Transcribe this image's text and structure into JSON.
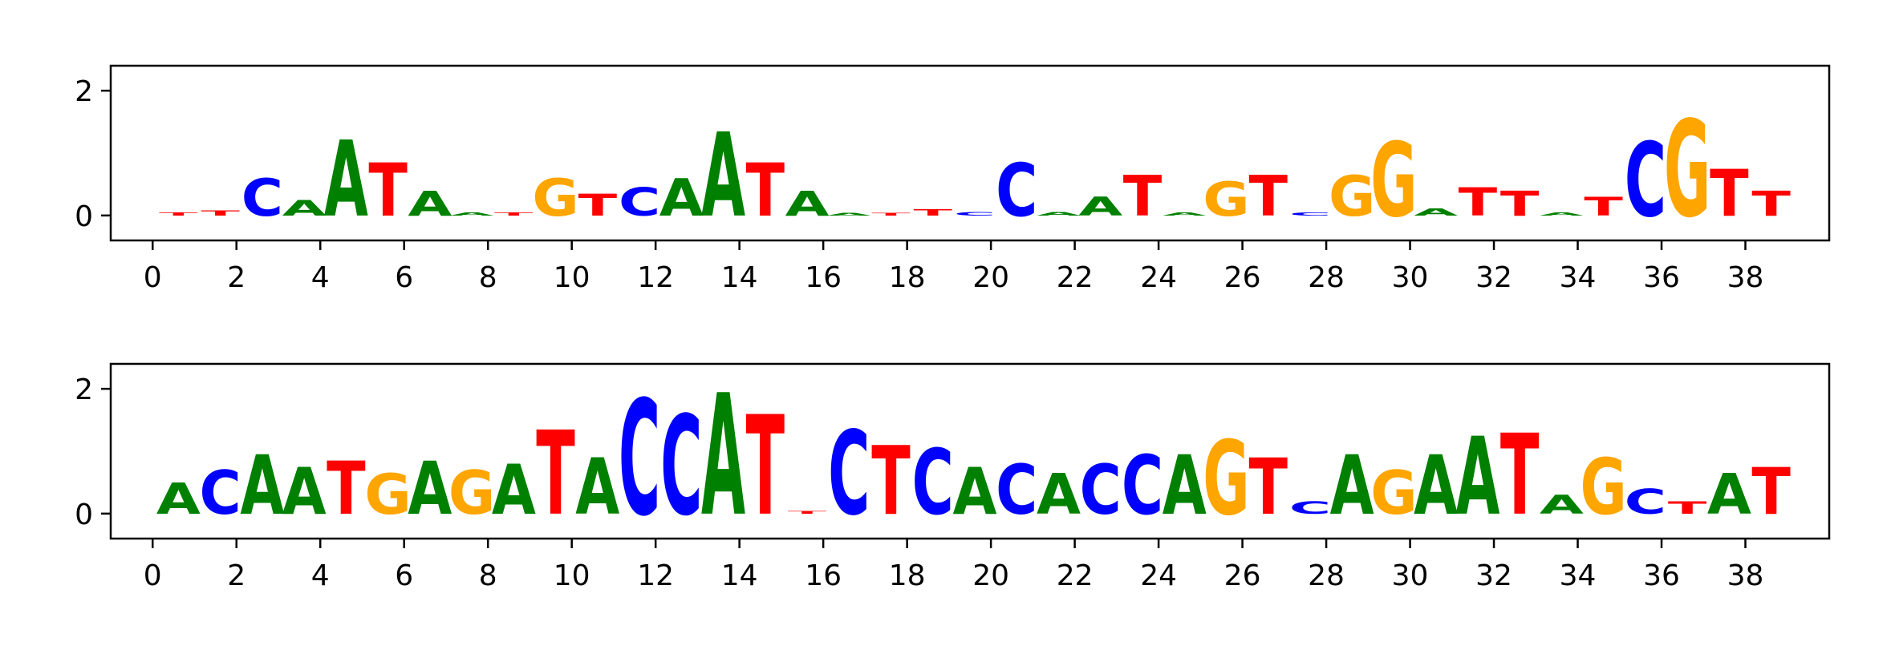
{
  "chart_data": [
    {
      "type": "sequence-logo",
      "title": "",
      "xlabel": "",
      "ylabel": "",
      "xlim": [
        -1,
        40
      ],
      "ylim": [
        -0.4,
        2.4
      ],
      "yticks": [
        0,
        2
      ],
      "xticks": [
        0,
        2,
        4,
        6,
        8,
        10,
        12,
        14,
        16,
        18,
        20,
        22,
        24,
        26,
        28,
        30,
        32,
        34,
        36,
        38
      ],
      "grid": false,
      "positions": [
        {
          "x": 0,
          "letter": "T",
          "height": 0.05
        },
        {
          "x": 1,
          "letter": "T",
          "height": 0.08
        },
        {
          "x": 2,
          "letter": "C",
          "height": 0.6
        },
        {
          "x": 3,
          "letter": "A",
          "height": 0.25
        },
        {
          "x": 4,
          "letter": "A",
          "height": 1.22
        },
        {
          "x": 5,
          "letter": "T",
          "height": 0.85
        },
        {
          "x": 6,
          "letter": "A",
          "height": 0.4
        },
        {
          "x": 7,
          "letter": "A",
          "height": 0.05
        },
        {
          "x": 8,
          "letter": "T",
          "height": 0.05
        },
        {
          "x": 9,
          "letter": "G",
          "height": 0.6
        },
        {
          "x": 10,
          "letter": "T",
          "height": 0.35
        },
        {
          "x": 11,
          "letter": "C",
          "height": 0.45
        },
        {
          "x": 12,
          "letter": "A",
          "height": 0.6
        },
        {
          "x": 13,
          "letter": "A",
          "height": 1.35
        },
        {
          "x": 14,
          "letter": "T",
          "height": 0.85
        },
        {
          "x": 15,
          "letter": "A",
          "height": 0.4
        },
        {
          "x": 16,
          "letter": "A",
          "height": 0.04
        },
        {
          "x": 17,
          "letter": "T",
          "height": 0.04
        },
        {
          "x": 18,
          "letter": "T",
          "height": 0.1
        },
        {
          "x": 19,
          "letter": "C",
          "height": 0.06
        },
        {
          "x": 20,
          "letter": "C",
          "height": 0.85
        },
        {
          "x": 21,
          "letter": "A",
          "height": 0.06
        },
        {
          "x": 22,
          "letter": "A",
          "height": 0.3
        },
        {
          "x": 23,
          "letter": "T",
          "height": 0.65
        },
        {
          "x": 24,
          "letter": "A",
          "height": 0.05
        },
        {
          "x": 25,
          "letter": "G",
          "height": 0.55
        },
        {
          "x": 26,
          "letter": "T",
          "height": 0.65
        },
        {
          "x": 27,
          "letter": "C",
          "height": 0.05
        },
        {
          "x": 28,
          "letter": "G",
          "height": 0.65
        },
        {
          "x": 29,
          "letter": "G",
          "height": 1.2
        },
        {
          "x": 30,
          "letter": "A",
          "height": 0.12
        },
        {
          "x": 31,
          "letter": "T",
          "height": 0.45
        },
        {
          "x": 32,
          "letter": "T",
          "height": 0.4
        },
        {
          "x": 33,
          "letter": "A",
          "height": 0.05
        },
        {
          "x": 34,
          "letter": "T",
          "height": 0.3
        },
        {
          "x": 35,
          "letter": "C",
          "height": 1.2
        },
        {
          "x": 36,
          "letter": "G",
          "height": 1.55
        },
        {
          "x": 37,
          "letter": "T",
          "height": 0.75
        },
        {
          "x": 38,
          "letter": "T",
          "height": 0.4
        }
      ]
    },
    {
      "type": "sequence-logo",
      "title": "",
      "xlabel": "",
      "ylabel": "",
      "xlim": [
        -1,
        40
      ],
      "ylim": [
        -0.4,
        2.4
      ],
      "yticks": [
        0,
        2
      ],
      "xticks": [
        0,
        2,
        4,
        6,
        8,
        10,
        12,
        14,
        16,
        18,
        20,
        22,
        24,
        26,
        28,
        30,
        32,
        34,
        36,
        38
      ],
      "grid": false,
      "positions": [
        {
          "x": 0,
          "letter": "A",
          "height": 0.5
        },
        {
          "x": 1,
          "letter": "C",
          "height": 0.7
        },
        {
          "x": 2,
          "letter": "A",
          "height": 0.95
        },
        {
          "x": 3,
          "letter": "A",
          "height": 0.75
        },
        {
          "x": 4,
          "letter": "T",
          "height": 0.85
        },
        {
          "x": 5,
          "letter": "G",
          "height": 0.65
        },
        {
          "x": 6,
          "letter": "A",
          "height": 0.85
        },
        {
          "x": 7,
          "letter": "G",
          "height": 0.7
        },
        {
          "x": 8,
          "letter": "A",
          "height": 0.8
        },
        {
          "x": 9,
          "letter": "T",
          "height": 1.35
        },
        {
          "x": 10,
          "letter": "A",
          "height": 0.9
        },
        {
          "x": 11,
          "letter": "C",
          "height": 1.85
        },
        {
          "x": 12,
          "letter": "C",
          "height": 1.6
        },
        {
          "x": 13,
          "letter": "A",
          "height": 1.95
        },
        {
          "x": 14,
          "letter": "T",
          "height": 1.6
        },
        {
          "x": 15,
          "letter": "T",
          "height": 0.04
        },
        {
          "x": 16,
          "letter": "C",
          "height": 1.35
        },
        {
          "x": 17,
          "letter": "T",
          "height": 1.1
        },
        {
          "x": 18,
          "letter": "C",
          "height": 1.05
        },
        {
          "x": 19,
          "letter": "A",
          "height": 0.75
        },
        {
          "x": 20,
          "letter": "C",
          "height": 0.8
        },
        {
          "x": 21,
          "letter": "A",
          "height": 0.65
        },
        {
          "x": 22,
          "letter": "C",
          "height": 0.8
        },
        {
          "x": 23,
          "letter": "C",
          "height": 0.95
        },
        {
          "x": 24,
          "letter": "A",
          "height": 0.95
        },
        {
          "x": 25,
          "letter": "G",
          "height": 1.2
        },
        {
          "x": 26,
          "letter": "T",
          "height": 0.9
        },
        {
          "x": 27,
          "letter": "C",
          "height": 0.2
        },
        {
          "x": 28,
          "letter": "A",
          "height": 0.95
        },
        {
          "x": 29,
          "letter": "G",
          "height": 0.7
        },
        {
          "x": 30,
          "letter": "A",
          "height": 0.95
        },
        {
          "x": 31,
          "letter": "A",
          "height": 1.25
        },
        {
          "x": 32,
          "letter": "T",
          "height": 1.3
        },
        {
          "x": 33,
          "letter": "A",
          "height": 0.3
        },
        {
          "x": 34,
          "letter": "G",
          "height": 0.9
        },
        {
          "x": 35,
          "letter": "C",
          "height": 0.4
        },
        {
          "x": 36,
          "letter": "T",
          "height": 0.2
        },
        {
          "x": 37,
          "letter": "A",
          "height": 0.65
        },
        {
          "x": 38,
          "letter": "T",
          "height": 0.75
        }
      ]
    }
  ],
  "colors": {
    "A": "#008000",
    "C": "#0000ff",
    "G": "#ffa500",
    "T": "#ff0000"
  }
}
